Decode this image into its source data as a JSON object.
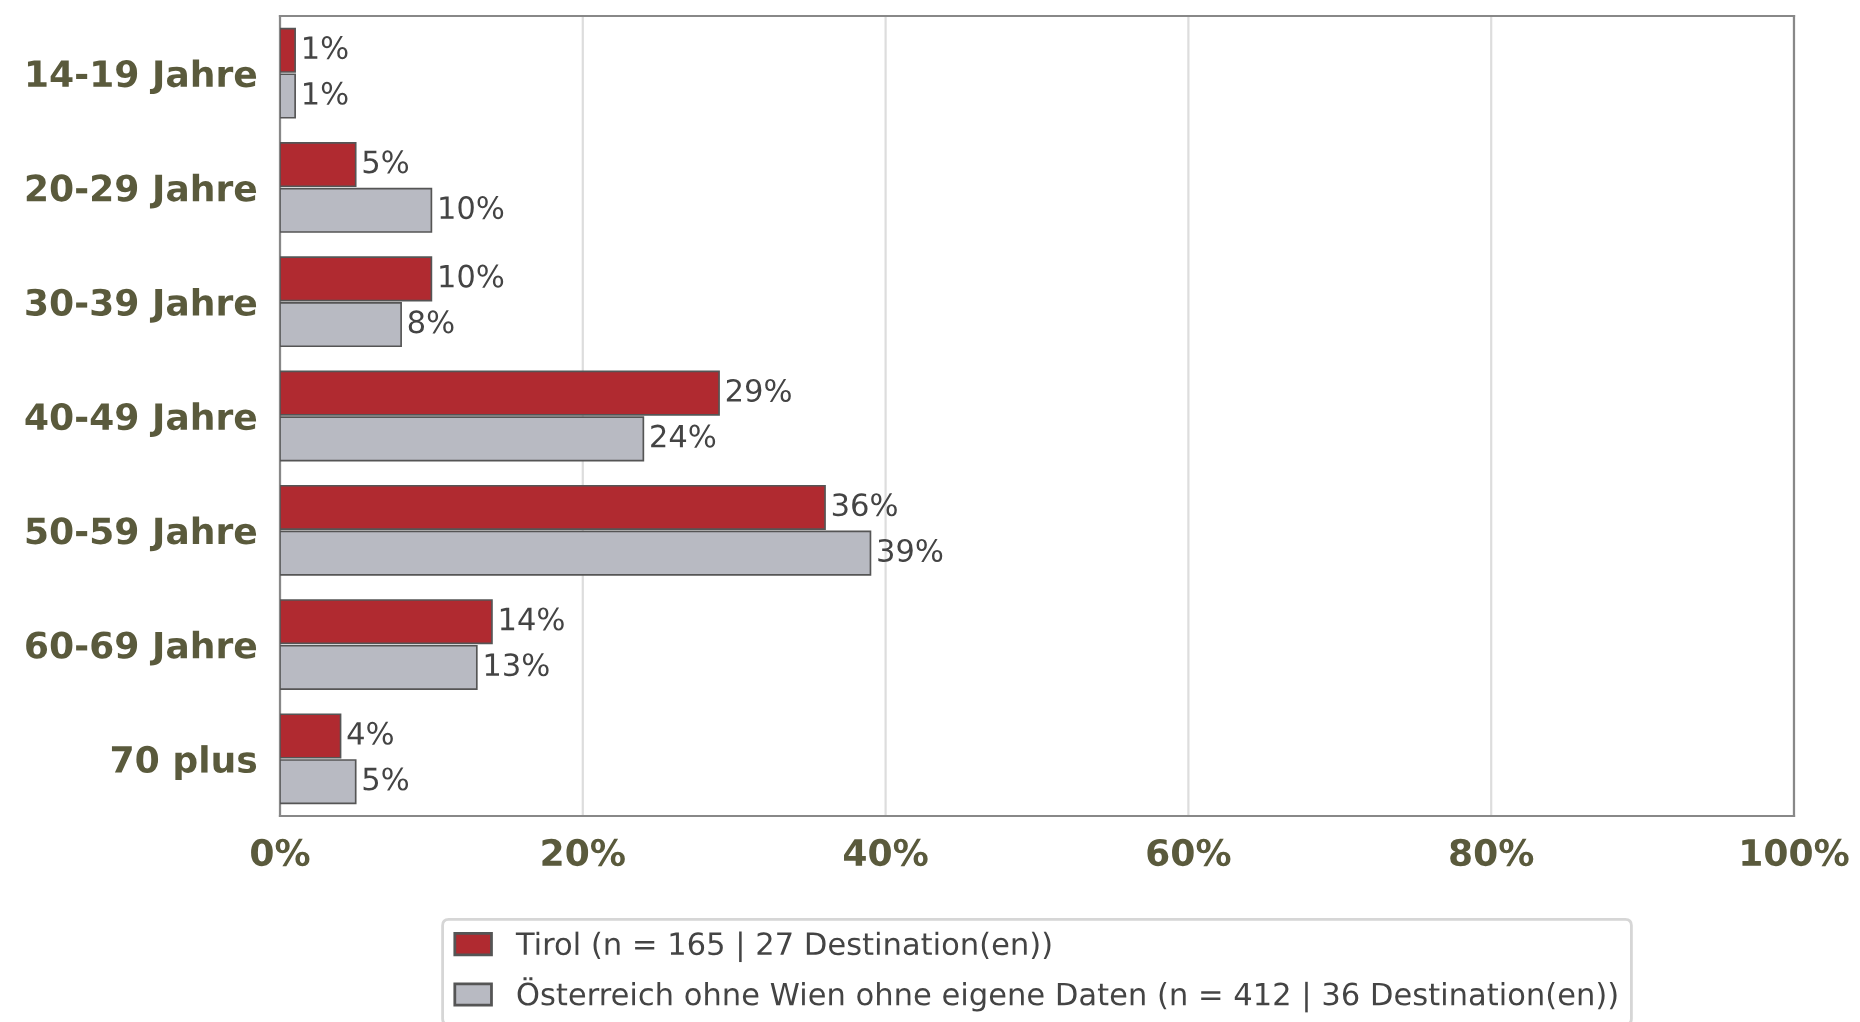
{
  "chart_data": {
    "type": "bar",
    "orientation": "horizontal",
    "categories": [
      "14-19 Jahre",
      "20-29 Jahre",
      "30-39 Jahre",
      "40-49 Jahre",
      "50-59 Jahre",
      "60-69 Jahre",
      "70 plus"
    ],
    "series": [
      {
        "name": "Tirol (n = 165 | 27 Destination(en))",
        "color": "#b02a30",
        "values": [
          1,
          5,
          10,
          29,
          36,
          14,
          4
        ],
        "value_labels": [
          "1%",
          "5%",
          "10%",
          "29%",
          "36%",
          "14%",
          "4%"
        ]
      },
      {
        "name": "Österreich ohne Wien ohne eigene Daten (n = 412 | 36 Destination(en))",
        "color": "#b8bac2",
        "values": [
          1,
          10,
          8,
          24,
          39,
          13,
          5
        ],
        "value_labels": [
          "1%",
          "10%",
          "8%",
          "24%",
          "39%",
          "13%",
          "5%"
        ]
      }
    ],
    "xlim": [
      0,
      100
    ],
    "xticks": [
      {
        "value": 0,
        "label": "0%"
      },
      {
        "value": 20,
        "label": "20%"
      },
      {
        "value": 40,
        "label": "40%"
      },
      {
        "value": 60,
        "label": "60%"
      },
      {
        "value": 80,
        "label": "80%"
      },
      {
        "value": 100,
        "label": "100%"
      }
    ],
    "grid": "x",
    "legend": "bottom"
  }
}
